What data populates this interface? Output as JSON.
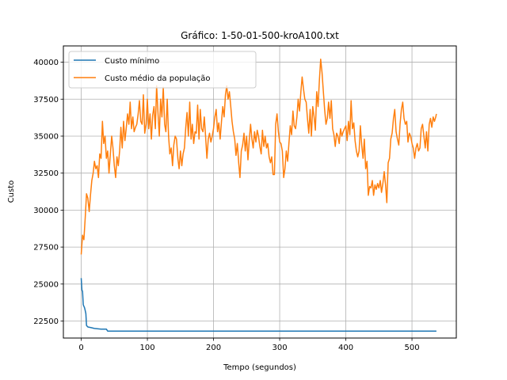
{
  "chart_data": {
    "type": "line",
    "title": "Gráfico: 1-50-01-500-kroA100.txt",
    "xlabel": "Tempo (segundos)",
    "ylabel": "Custo",
    "xlim": [
      -27,
      567
    ],
    "ylim": [
      21350,
      41100
    ],
    "xticks": [
      0,
      100,
      200,
      300,
      400,
      500
    ],
    "yticks": [
      22500,
      25000,
      27500,
      30000,
      32500,
      35000,
      37500,
      40000
    ],
    "grid": true,
    "legend_position": "top-left",
    "series": [
      {
        "name": "Custo mínimo",
        "color": "#1f77b4",
        "points": [
          [
            0,
            25400
          ],
          [
            1,
            24600
          ],
          [
            2,
            24500
          ],
          [
            3,
            23600
          ],
          [
            5,
            23400
          ],
          [
            6,
            23200
          ],
          [
            7,
            23000
          ],
          [
            8,
            22200
          ],
          [
            10,
            22100
          ],
          [
            15,
            22050
          ],
          [
            20,
            22000
          ],
          [
            30,
            21950
          ],
          [
            38,
            21950
          ],
          [
            40,
            21820
          ],
          [
            60,
            21820
          ],
          [
            100,
            21820
          ],
          [
            200,
            21820
          ],
          [
            300,
            21820
          ],
          [
            400,
            21820
          ],
          [
            500,
            21820
          ],
          [
            537,
            21820
          ]
        ]
      },
      {
        "name": "Custo médio da população",
        "color": "#ff7f0e",
        "points": [
          [
            0,
            27000
          ],
          [
            2,
            28300
          ],
          [
            4,
            28000
          ],
          [
            6,
            29500
          ],
          [
            8,
            31100
          ],
          [
            10,
            30800
          ],
          [
            12,
            29900
          ],
          [
            14,
            31000
          ],
          [
            16,
            32000
          ],
          [
            18,
            32500
          ],
          [
            20,
            33300
          ],
          [
            22,
            32800
          ],
          [
            24,
            33000
          ],
          [
            26,
            32200
          ],
          [
            28,
            33800
          ],
          [
            30,
            33500
          ],
          [
            32,
            36000
          ],
          [
            34,
            34500
          ],
          [
            36,
            35000
          ],
          [
            38,
            33500
          ],
          [
            40,
            34000
          ],
          [
            42,
            32500
          ],
          [
            44,
            33800
          ],
          [
            46,
            35000
          ],
          [
            48,
            34200
          ],
          [
            50,
            33000
          ],
          [
            52,
            32200
          ],
          [
            54,
            33600
          ],
          [
            56,
            33000
          ],
          [
            58,
            34000
          ],
          [
            60,
            35600
          ],
          [
            62,
            34200
          ],
          [
            64,
            36000
          ],
          [
            66,
            34700
          ],
          [
            68,
            35500
          ],
          [
            70,
            36500
          ],
          [
            72,
            35800
          ],
          [
            74,
            37300
          ],
          [
            76,
            35500
          ],
          [
            78,
            36300
          ],
          [
            80,
            35300
          ],
          [
            82,
            35600
          ],
          [
            84,
            35800
          ],
          [
            86,
            36500
          ],
          [
            88,
            37400
          ],
          [
            90,
            36000
          ],
          [
            92,
            35800
          ],
          [
            94,
            37800
          ],
          [
            96,
            35200
          ],
          [
            98,
            35800
          ],
          [
            100,
            37500
          ],
          [
            102,
            35500
          ],
          [
            104,
            36500
          ],
          [
            106,
            34800
          ],
          [
            108,
            36400
          ],
          [
            110,
            37000
          ],
          [
            112,
            35500
          ],
          [
            114,
            38400
          ],
          [
            116,
            36600
          ],
          [
            118,
            35000
          ],
          [
            120,
            37500
          ],
          [
            122,
            36300
          ],
          [
            124,
            38300
          ],
          [
            126,
            35800
          ],
          [
            128,
            35300
          ],
          [
            130,
            37500
          ],
          [
            132,
            35000
          ],
          [
            134,
            33800
          ],
          [
            136,
            34200
          ],
          [
            138,
            33000
          ],
          [
            140,
            34400
          ],
          [
            142,
            35000
          ],
          [
            144,
            34800
          ],
          [
            146,
            33500
          ],
          [
            148,
            32800
          ],
          [
            150,
            34000
          ],
          [
            152,
            33000
          ],
          [
            154,
            33800
          ],
          [
            156,
            34200
          ],
          [
            158,
            35600
          ],
          [
            160,
            36600
          ],
          [
            162,
            35000
          ],
          [
            164,
            37300
          ],
          [
            166,
            34800
          ],
          [
            168,
            35800
          ],
          [
            170,
            34500
          ],
          [
            172,
            35300
          ],
          [
            174,
            35200
          ],
          [
            176,
            37100
          ],
          [
            178,
            34800
          ],
          [
            180,
            36800
          ],
          [
            182,
            35500
          ],
          [
            184,
            35300
          ],
          [
            186,
            36300
          ],
          [
            188,
            35000
          ],
          [
            190,
            33500
          ],
          [
            192,
            34800
          ],
          [
            194,
            35200
          ],
          [
            196,
            34600
          ],
          [
            198,
            35000
          ],
          [
            200,
            35500
          ],
          [
            202,
            36300
          ],
          [
            204,
            36800
          ],
          [
            206,
            35300
          ],
          [
            208,
            35900
          ],
          [
            210,
            34800
          ],
          [
            212,
            36000
          ],
          [
            214,
            37000
          ],
          [
            216,
            36300
          ],
          [
            218,
            37800
          ],
          [
            220,
            38400
          ],
          [
            222,
            37500
          ],
          [
            224,
            38000
          ],
          [
            226,
            37000
          ],
          [
            228,
            36000
          ],
          [
            230,
            35300
          ],
          [
            232,
            34800
          ],
          [
            234,
            33700
          ],
          [
            236,
            34500
          ],
          [
            238,
            33200
          ],
          [
            240,
            32200
          ],
          [
            242,
            34000
          ],
          [
            244,
            34400
          ],
          [
            246,
            35200
          ],
          [
            248,
            34000
          ],
          [
            250,
            35000
          ],
          [
            252,
            33400
          ],
          [
            254,
            34700
          ],
          [
            256,
            35800
          ],
          [
            258,
            34800
          ],
          [
            260,
            34200
          ],
          [
            262,
            35300
          ],
          [
            264,
            34600
          ],
          [
            266,
            35400
          ],
          [
            268,
            35000
          ],
          [
            270,
            34300
          ],
          [
            272,
            33800
          ],
          [
            274,
            35400
          ],
          [
            276,
            34300
          ],
          [
            278,
            35000
          ],
          [
            280,
            34200
          ],
          [
            282,
            34500
          ],
          [
            284,
            33600
          ],
          [
            286,
            33200
          ],
          [
            288,
            33600
          ],
          [
            290,
            32400
          ],
          [
            292,
            32400
          ],
          [
            294,
            35800
          ],
          [
            296,
            36500
          ],
          [
            298,
            35300
          ],
          [
            300,
            34600
          ],
          [
            302,
            34500
          ],
          [
            304,
            34000
          ],
          [
            306,
            32200
          ],
          [
            308,
            32800
          ],
          [
            310,
            34000
          ],
          [
            312,
            33300
          ],
          [
            314,
            34500
          ],
          [
            316,
            35700
          ],
          [
            318,
            35100
          ],
          [
            320,
            36700
          ],
          [
            322,
            35700
          ],
          [
            324,
            35500
          ],
          [
            326,
            36300
          ],
          [
            328,
            37500
          ],
          [
            330,
            36700
          ],
          [
            332,
            38000
          ],
          [
            334,
            39000
          ],
          [
            336,
            38200
          ],
          [
            338,
            37500
          ],
          [
            340,
            37300
          ],
          [
            342,
            36200
          ],
          [
            344,
            35200
          ],
          [
            346,
            36800
          ],
          [
            348,
            35000
          ],
          [
            350,
            37000
          ],
          [
            352,
            36300
          ],
          [
            354,
            35400
          ],
          [
            356,
            38000
          ],
          [
            358,
            37000
          ],
          [
            360,
            38800
          ],
          [
            362,
            40200
          ],
          [
            364,
            39300
          ],
          [
            366,
            38000
          ],
          [
            368,
            36800
          ],
          [
            370,
            35800
          ],
          [
            372,
            36200
          ],
          [
            374,
            37300
          ],
          [
            376,
            36200
          ],
          [
            378,
            37400
          ],
          [
            380,
            35500
          ],
          [
            382,
            35100
          ],
          [
            384,
            34300
          ],
          [
            386,
            35200
          ],
          [
            388,
            35000
          ],
          [
            390,
            34500
          ],
          [
            392,
            35500
          ],
          [
            394,
            35000
          ],
          [
            396,
            35300
          ],
          [
            398,
            35500
          ],
          [
            400,
            35700
          ],
          [
            402,
            34700
          ],
          [
            404,
            36000
          ],
          [
            406,
            35100
          ],
          [
            408,
            37400
          ],
          [
            410,
            35500
          ],
          [
            412,
            35900
          ],
          [
            414,
            34700
          ],
          [
            416,
            34000
          ],
          [
            418,
            33600
          ],
          [
            420,
            34000
          ],
          [
            422,
            35700
          ],
          [
            424,
            34400
          ],
          [
            426,
            33500
          ],
          [
            428,
            34800
          ],
          [
            430,
            32800
          ],
          [
            432,
            33300
          ],
          [
            434,
            31000
          ],
          [
            436,
            31600
          ],
          [
            438,
            31500
          ],
          [
            440,
            32000
          ],
          [
            442,
            31000
          ],
          [
            444,
            31700
          ],
          [
            446,
            31400
          ],
          [
            448,
            31800
          ],
          [
            450,
            31500
          ],
          [
            452,
            32000
          ],
          [
            454,
            31200
          ],
          [
            456,
            31800
          ],
          [
            458,
            32600
          ],
          [
            460,
            31700
          ],
          [
            462,
            30500
          ],
          [
            464,
            33200
          ],
          [
            466,
            33500
          ],
          [
            468,
            34800
          ],
          [
            470,
            35200
          ],
          [
            472,
            36200
          ],
          [
            474,
            36800
          ],
          [
            476,
            35300
          ],
          [
            478,
            34800
          ],
          [
            480,
            34400
          ],
          [
            482,
            35800
          ],
          [
            484,
            36800
          ],
          [
            486,
            37300
          ],
          [
            488,
            36200
          ],
          [
            490,
            35800
          ],
          [
            492,
            36000
          ],
          [
            494,
            34600
          ],
          [
            496,
            35200
          ],
          [
            498,
            35000
          ],
          [
            500,
            34500
          ],
          [
            502,
            34200
          ],
          [
            504,
            33500
          ],
          [
            506,
            34200
          ],
          [
            508,
            34500
          ],
          [
            510,
            34000
          ],
          [
            512,
            34200
          ],
          [
            514,
            35500
          ],
          [
            516,
            35800
          ],
          [
            518,
            35000
          ],
          [
            520,
            34200
          ],
          [
            522,
            35300
          ],
          [
            524,
            34000
          ],
          [
            526,
            35800
          ],
          [
            528,
            36200
          ],
          [
            530,
            35600
          ],
          [
            532,
            36300
          ],
          [
            534,
            36000
          ],
          [
            536,
            36300
          ],
          [
            537,
            36500
          ]
        ]
      }
    ]
  }
}
